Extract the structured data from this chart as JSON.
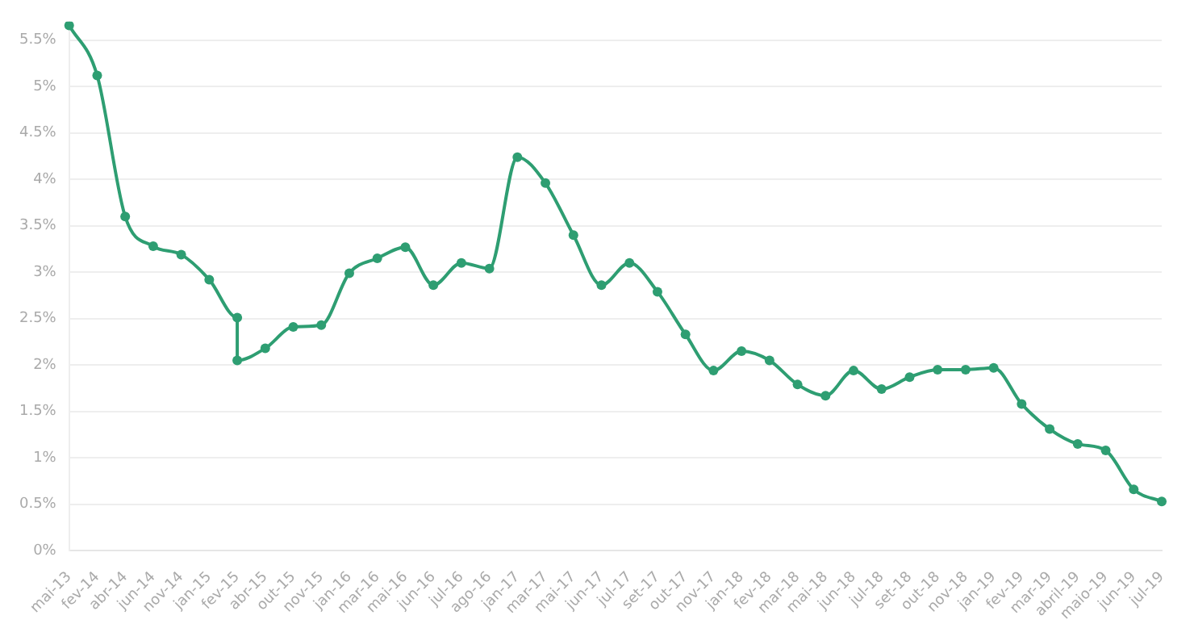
{
  "chart_data": {
    "type": "line",
    "categories": [
      "mai-13",
      "fev-14",
      "abr-14",
      "jun-14",
      "nov-14",
      "jan-15",
      "fev-15",
      "abr-15",
      "out-15",
      "nov-15",
      "jan-16",
      "mar-16",
      "mai-16",
      "jun-16",
      "jul-16",
      "ago-16",
      "jan-17",
      "mar-17",
      "mai-17",
      "jun-17",
      "jul-17",
      "set-17",
      "out-17",
      "nov-17",
      "jan-18",
      "fev-18",
      "mar-18",
      "mai-18",
      "jun-18",
      "jul-18",
      "set-18",
      "out-18",
      "nov-18",
      "jan-19",
      "fev-19",
      "mar-19",
      "abril-19",
      "maio-19",
      "jun-19",
      "jul-19"
    ],
    "series": [
      {
        "color": "#2e9e72",
        "x": [
          "mai-13",
          "fev-14",
          "abr-14",
          "jun-14",
          "nov-14",
          "jan-15",
          "fev-15",
          "fev-15",
          "abr-15",
          "out-15",
          "nov-15",
          "jan-16",
          "mar-16",
          "mai-16",
          "jun-16",
          "jul-16",
          "ago-16",
          "jan-17",
          "mar-17",
          "mai-17",
          "jun-17",
          "jul-17",
          "set-17",
          "out-17",
          "nov-17",
          "jan-18",
          "fev-18",
          "mar-18",
          "mai-18",
          "jun-18",
          "jul-18",
          "set-18",
          "out-18",
          "nov-18",
          "jan-19",
          "fev-19",
          "mar-19",
          "abril-19",
          "maio-19",
          "jun-19",
          "jul-19"
        ],
        "values": [
          5.66,
          5.12,
          3.6,
          3.28,
          3.19,
          2.92,
          2.51,
          2.05,
          2.18,
          2.41,
          2.43,
          2.99,
          3.15,
          3.27,
          2.86,
          3.1,
          3.04,
          4.24,
          3.96,
          3.4,
          2.86,
          3.1,
          2.79,
          2.33,
          1.94,
          2.15,
          2.05,
          1.79,
          1.67,
          1.94,
          1.74,
          1.87,
          1.95,
          1.95,
          1.97,
          1.58,
          1.31,
          1.15,
          1.08,
          0.66,
          0.53
        ]
      }
    ],
    "ylim": [
      0,
      5.7
    ],
    "yticks": [
      {
        "value": 0,
        "label": "0%"
      },
      {
        "value": 0.5,
        "label": "0.5%"
      },
      {
        "value": 1,
        "label": "1%"
      },
      {
        "value": 1.5,
        "label": "1.5%"
      },
      {
        "value": 2,
        "label": "2%"
      },
      {
        "value": 2.5,
        "label": "2.5%"
      },
      {
        "value": 3,
        "label": "3%"
      },
      {
        "value": 3.5,
        "label": "3.5%"
      },
      {
        "value": 4,
        "label": "4%"
      },
      {
        "value": 4.5,
        "label": "4.5%"
      },
      {
        "value": 5,
        "label": "5%"
      },
      {
        "value": 5.5,
        "label": "5.5%"
      }
    ],
    "grid": "y",
    "legend": false,
    "marker": "circle",
    "line_style": "solid"
  }
}
